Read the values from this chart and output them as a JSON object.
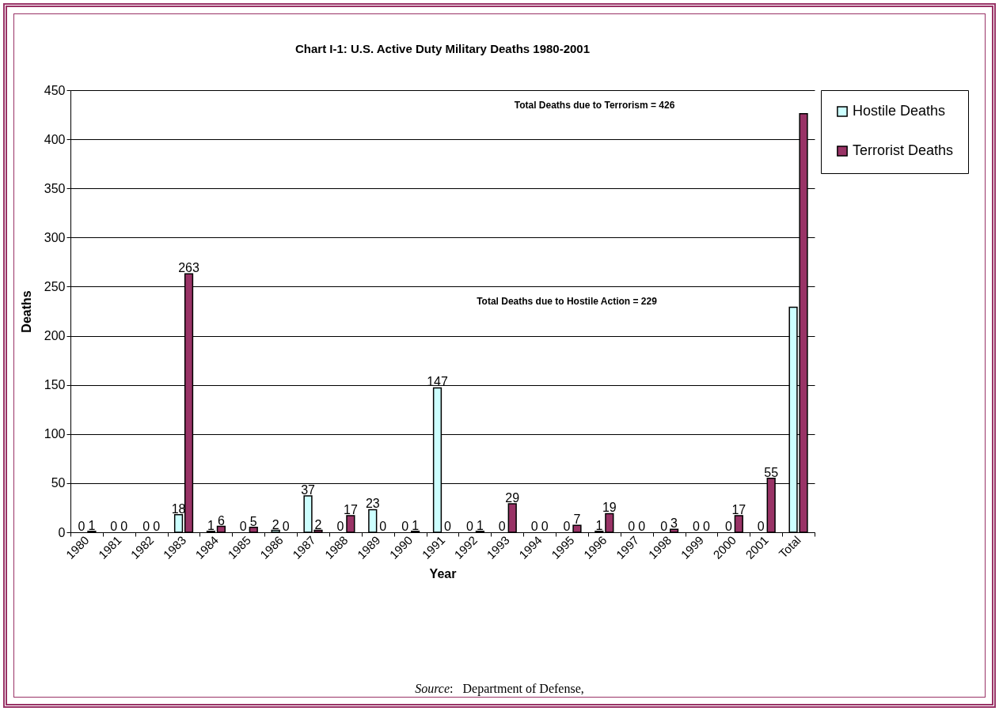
{
  "chart_data": {
    "type": "bar",
    "title": "Chart I-1: U.S. Active Duty Military Deaths 1980-2001",
    "xlabel": "Year",
    "ylabel": "Deaths",
    "categories": [
      "1980",
      "1981",
      "1982",
      "1983",
      "1984",
      "1985",
      "1986",
      "1987",
      "1988",
      "1989",
      "1990",
      "1991",
      "1992",
      "1993",
      "1994",
      "1995",
      "1996",
      "1997",
      "1998",
      "1999",
      "2000",
      "2001",
      "Total"
    ],
    "series": [
      {
        "name": "Hostile Deaths",
        "color": "#ccffff",
        "values": [
          0,
          0,
          0,
          18,
          1,
          0,
          2,
          37,
          0,
          23,
          0,
          147,
          0,
          0,
          0,
          0,
          1,
          0,
          0,
          0,
          0,
          0,
          229
        ],
        "value_labels": [
          "0",
          "0",
          "0",
          "18",
          "1",
          "0",
          "2",
          "37",
          "0",
          "23",
          "0",
          "147",
          "0",
          "0",
          "0",
          "0",
          "1",
          "0",
          "0",
          "0",
          "0",
          "0",
          null
        ]
      },
      {
        "name": "Terrorist Deaths",
        "color": "#993366",
        "values": [
          1,
          0,
          0,
          263,
          6,
          5,
          0,
          2,
          17,
          0,
          1,
          0,
          1,
          29,
          0,
          7,
          19,
          0,
          3,
          0,
          17,
          55,
          426
        ],
        "value_labels": [
          "1",
          "0",
          "0",
          "263",
          "6",
          "5",
          "0",
          "2",
          "17",
          "0",
          "1",
          "0",
          "1",
          "29",
          "0",
          "7",
          "19",
          "0",
          "3",
          "0",
          "17",
          "55",
          null
        ]
      }
    ],
    "ylim": [
      0,
      450
    ],
    "yticks": [
      0,
      50,
      100,
      150,
      200,
      250,
      300,
      350,
      400,
      450
    ],
    "grid": "y",
    "legend": "right",
    "annotations": [
      "Total Deaths due to Terrorism = 426",
      "Total Deaths due to Hostile Action = 229",
      "Source:   Department of Defense,"
    ]
  }
}
